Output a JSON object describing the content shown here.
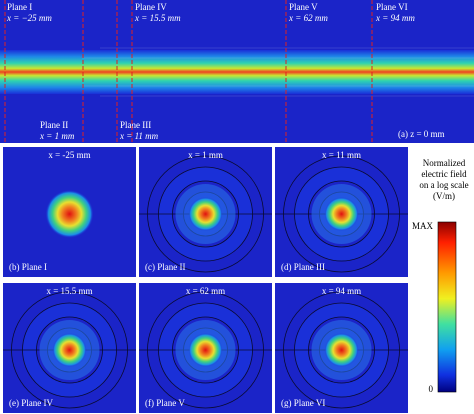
{
  "top_panel": {
    "planes": [
      {
        "name": "Plane I",
        "position": "x = −25 mm"
      },
      {
        "name": "Plane II",
        "position": "x = 1 mm"
      },
      {
        "name": "Plane III",
        "position": "x = 11 mm"
      },
      {
        "name": "Plane IV",
        "position": "x = 15.5 mm"
      },
      {
        "name": "Plane V",
        "position": "x = 62 mm"
      },
      {
        "name": "Plane VI",
        "position": "x = 94 mm"
      }
    ],
    "caption": "(a) z = 0 mm"
  },
  "panels": [
    {
      "title": "x = -25 mm",
      "caption": "(b) Plane I"
    },
    {
      "title": "x = 1 mm",
      "caption": "(c) Plane II"
    },
    {
      "title": "x = 11 mm",
      "caption": "(d) Plane III"
    },
    {
      "title": "x = 15.5 mm",
      "caption": "(e) Plane IV"
    },
    {
      "title": "x = 62 mm",
      "caption": "(f) Plane V"
    },
    {
      "title": "x = 94 mm",
      "caption": "(g) Plane VI"
    }
  ],
  "colorbar": {
    "title": [
      "Normalized",
      "electric field",
      "on a log scale",
      "(V/m)"
    ],
    "max_label": "MAX",
    "min_label": "0"
  }
}
